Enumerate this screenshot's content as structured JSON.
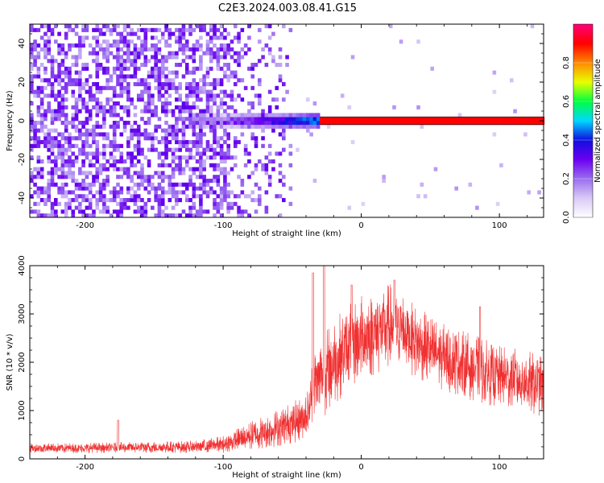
{
  "title": "C2E3.2024.003.08.41.G15",
  "chart_data": [
    {
      "type": "heatmap",
      "xlabel": "Height of straight line (km)",
      "ylabel": "Frequency (Hz)",
      "xlim": [
        -240,
        132
      ],
      "ylim": [
        -50,
        50
      ],
      "xticks": [
        -200,
        -100,
        0,
        100
      ],
      "yticks": [
        -40,
        -20,
        0,
        20,
        40
      ],
      "colorbar": {
        "label": "Normalized spectral amplitude",
        "range": [
          0,
          1
        ],
        "ticks": [
          0.0,
          0.2,
          0.4,
          0.6,
          0.8
        ],
        "colors": [
          "#ffffff",
          "#d9c9f5",
          "#9a6cf0",
          "#6a00f0",
          "#1010e0",
          "#00d8ff",
          "#00ff40",
          "#e8ff00",
          "#ff8800",
          "#ff0000",
          "#ff0078"
        ]
      },
      "features": {
        "noise_region_x": [
          -240,
          -50
        ],
        "ridge_frequency_hz": 0,
        "strong_ridge_x": [
          -30,
          132
        ]
      }
    },
    {
      "type": "line",
      "xlabel": "Height of straight line (km)",
      "ylabel": "SNR (10 * v/v)",
      "xlim": [
        -240,
        132
      ],
      "ylim": [
        0,
        4000
      ],
      "xticks": [
        -200,
        -100,
        0,
        100
      ],
      "yticks": [
        0,
        1000,
        2000,
        3000,
        4000
      ],
      "color": "#f03030",
      "envelope": {
        "x": [
          -240,
          -180,
          -120,
          -100,
          -80,
          -60,
          -45,
          -38,
          -35,
          -30,
          -25,
          -20,
          -10,
          0,
          10,
          20,
          30,
          40,
          60,
          80,
          100,
          120,
          132
        ],
        "mean": [
          220,
          230,
          250,
          300,
          480,
          650,
          800,
          1000,
          1500,
          1700,
          1800,
          2000,
          2300,
          2500,
          2600,
          2750,
          2700,
          2400,
          2100,
          1900,
          1700,
          1600,
          1500
        ],
        "half": [
          100,
          110,
          130,
          180,
          300,
          400,
          450,
          500,
          700,
          800,
          900,
          900,
          900,
          900,
          900,
          900,
          800,
          750,
          700,
          700,
          650,
          650,
          650
        ]
      },
      "peaks": [
        {
          "x": -176,
          "y": 800
        },
        {
          "x": -35,
          "y": 3850
        },
        {
          "x": -27,
          "y": 4000
        },
        {
          "x": -7,
          "y": 3600
        },
        {
          "x": 24,
          "y": 3700
        },
        {
          "x": 86,
          "y": 3150
        }
      ]
    }
  ]
}
